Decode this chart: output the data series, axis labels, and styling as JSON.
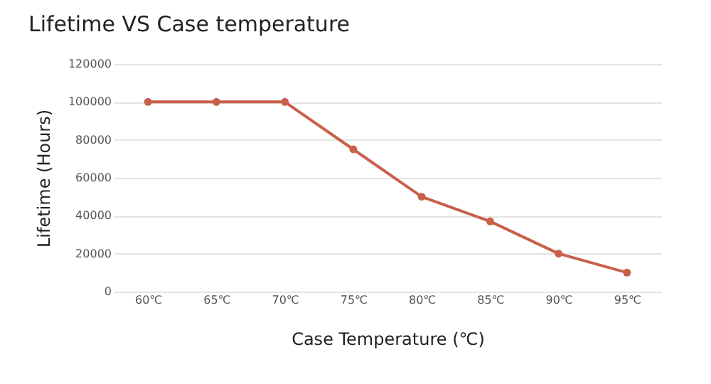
{
  "chart_data": {
    "type": "line",
    "title": "Lifetime VS Case temperature",
    "xlabel": "Case Temperature (℃)",
    "ylabel": "Lifetime (Hours)",
    "categories": [
      "60℃",
      "65℃",
      "70℃",
      "75℃",
      "80℃",
      "85℃",
      "90℃",
      "95℃"
    ],
    "series": [
      {
        "color": "#c8604a",
        "values": [
          100000,
          100000,
          100000,
          75000,
          50000,
          37000,
          20000,
          10000
        ]
      }
    ],
    "ylim": [
      0,
      120000
    ],
    "yticks": [
      0,
      20000,
      40000,
      60000,
      80000,
      100000,
      120000
    ],
    "grid": "y",
    "marker": "circle"
  }
}
